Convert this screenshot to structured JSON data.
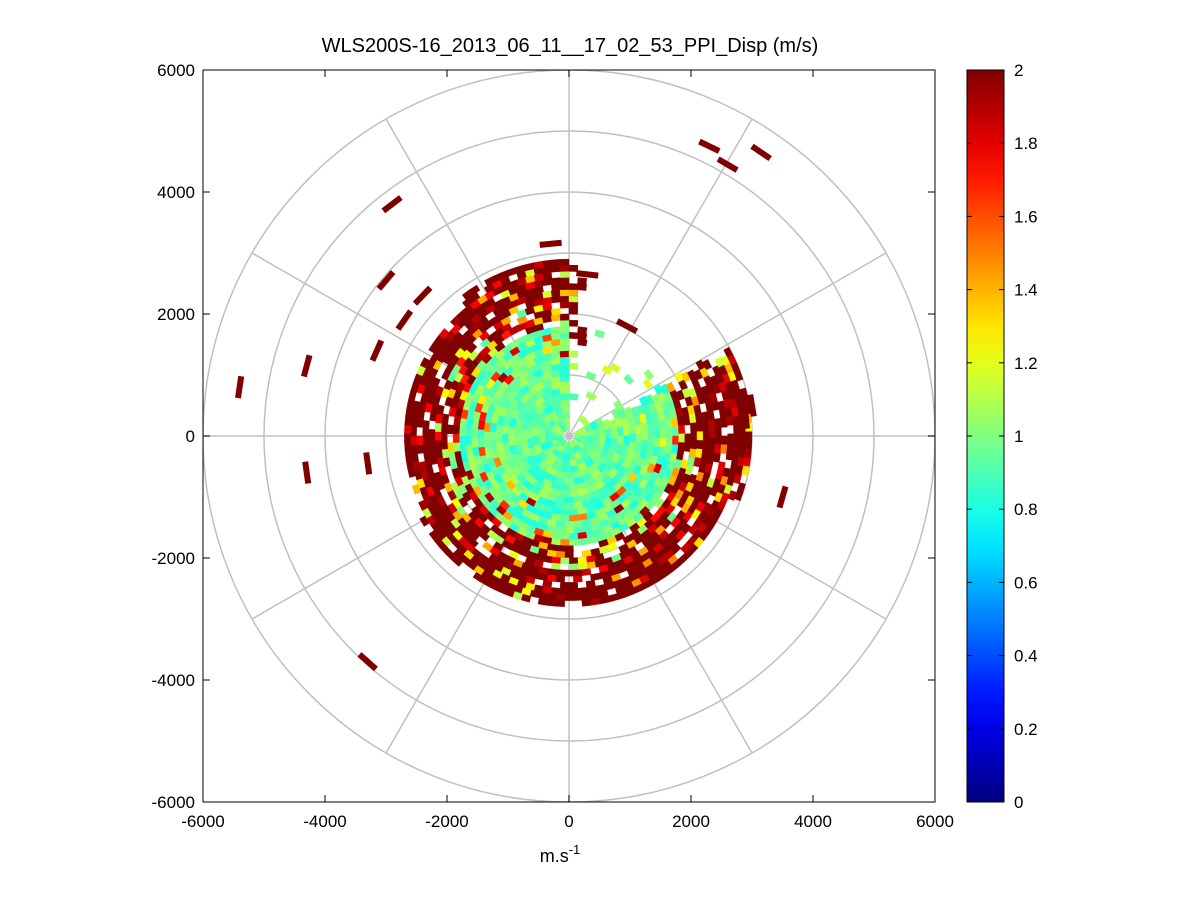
{
  "chart_data": {
    "type": "scatter",
    "title": "WLS200S-16_2013_06_11__17_02_53_PPI_Disp (m/s)",
    "xlabel": "m.s",
    "xlabel_superscript": "-1",
    "ylabel": "",
    "xlim": [
      -6000,
      6000
    ],
    "ylim": [
      -6000,
      6000
    ],
    "xticks": [
      -6000,
      -4000,
      -2000,
      0,
      2000,
      4000,
      6000
    ],
    "yticks": [
      6000,
      4000,
      2000,
      0,
      -2000,
      -4000,
      -6000
    ],
    "xtick_labels": [
      "-6000",
      "-4000",
      "-2000",
      "0",
      "2000",
      "4000",
      "6000"
    ],
    "ytick_labels": [
      "6000",
      "4000",
      "2000",
      "0",
      "-2000",
      "-4000",
      "-6000"
    ],
    "polar_grid": {
      "range_rings": [
        1000,
        2000,
        3000,
        4000,
        5000,
        6000
      ],
      "spokes_deg": [
        0,
        30,
        60,
        90,
        120,
        150,
        180,
        210,
        240,
        270,
        300,
        330
      ]
    },
    "colorbar": {
      "range": [
        0,
        2
      ],
      "ticks": [
        "0",
        "0.2",
        "0.4",
        "0.6",
        "0.8",
        "1",
        "1.2",
        "1.4",
        "1.6",
        "1.8",
        "2"
      ],
      "colormap": "jet"
    },
    "field_description": {
      "core_radius_m": 1800,
      "core_values": [
        0.8,
        1.1
      ],
      "mid_radius_m": [
        1800,
        2700
      ],
      "mid_values": [
        1.0,
        2.0
      ],
      "outer_max_radius_m": 3000,
      "missing_sector_deg": [
        0,
        60
      ],
      "missing_sector_reach_m": 1800
    },
    "outliers": [
      {
        "x": 2300,
        "y": 4750,
        "value": 2.0
      },
      {
        "x": 2600,
        "y": 4450,
        "value": 2.0
      },
      {
        "x": 3150,
        "y": 4650,
        "value": 2.0
      },
      {
        "x": -2900,
        "y": 3800,
        "value": 2.0
      },
      {
        "x": -300,
        "y": 3150,
        "value": 2.0
      },
      {
        "x": 300,
        "y": 2650,
        "value": 2.0
      },
      {
        "x": 950,
        "y": 1800,
        "value": 2.0
      },
      {
        "x": -3000,
        "y": 2550,
        "value": 2.0
      },
      {
        "x": -2400,
        "y": 2300,
        "value": 2.0
      },
      {
        "x": -2700,
        "y": 1900,
        "value": 2.0
      },
      {
        "x": -3150,
        "y": 1400,
        "value": 2.0
      },
      {
        "x": -4300,
        "y": 1150,
        "value": 2.0
      },
      {
        "x": -5400,
        "y": 800,
        "value": 2.0
      },
      {
        "x": -4300,
        "y": -600,
        "value": 2.0
      },
      {
        "x": -3300,
        "y": -450,
        "value": 2.0
      },
      {
        "x": 3500,
        "y": -1000,
        "value": 2.0
      },
      {
        "x": -3300,
        "y": -3700,
        "value": 2.0
      },
      {
        "x": 3000,
        "y": 500,
        "value": 2.0
      },
      {
        "x": 2900,
        "y": 300,
        "value": 2.0
      }
    ]
  }
}
